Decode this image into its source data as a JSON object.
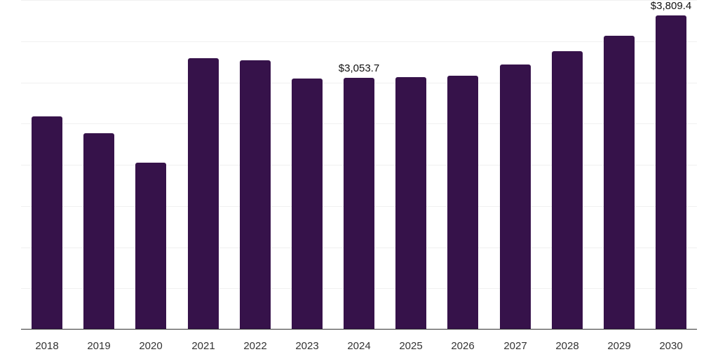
{
  "chart_data": {
    "type": "bar",
    "title": "",
    "xlabel": "",
    "ylabel": "",
    "categories": [
      "2018",
      "2019",
      "2020",
      "2021",
      "2022",
      "2023",
      "2024",
      "2025",
      "2026",
      "2027",
      "2028",
      "2029",
      "2030"
    ],
    "values": [
      2587,
      2383,
      2026,
      3294,
      3268,
      3050,
      3053.7,
      3064,
      3081,
      3217,
      3379,
      3566,
      3809.4
    ],
    "data_labels": [
      {
        "category": "2024",
        "text": "$3,053.7"
      },
      {
        "category": "2030",
        "text": "$3,809.4"
      }
    ],
    "ylim": [
      0,
      4000
    ],
    "grid": true,
    "grid_step": 500,
    "legend": null,
    "bar_color": "#36124a"
  }
}
